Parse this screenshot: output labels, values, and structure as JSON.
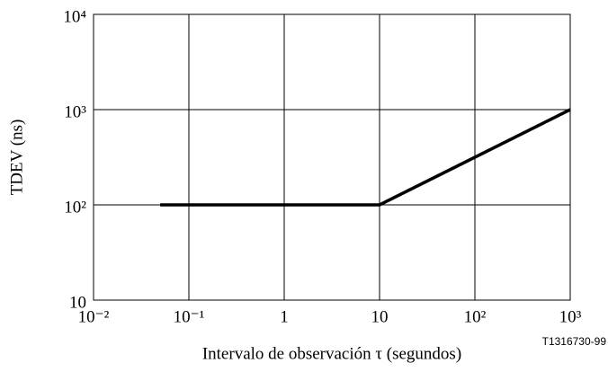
{
  "chart_data": {
    "type": "line",
    "ylabel": "TDEV (ns)",
    "xlabel": "Intervalo de observación τ (segundos)",
    "annotation": "T1316730-99",
    "x": [
      0.05,
      10,
      1000
    ],
    "values": [
      100,
      100,
      1000
    ],
    "color": "#000000",
    "log_x": true,
    "log_y": true,
    "grid": true,
    "xlim": [
      0.01,
      1000
    ],
    "xticks": [
      {
        "value": 0.01,
        "label": "10⁻²"
      },
      {
        "value": 0.1,
        "label": "10⁻¹"
      },
      1,
      10,
      {
        "value": 100,
        "label": "10²"
      },
      {
        "value": 1000,
        "label": "10³"
      }
    ],
    "ylim": [
      10,
      10000
    ],
    "yticks": [
      10,
      {
        "value": 100,
        "label": "10²"
      },
      {
        "value": 1000,
        "label": "10³"
      },
      {
        "value": 10000,
        "label": "10⁴"
      }
    ]
  }
}
